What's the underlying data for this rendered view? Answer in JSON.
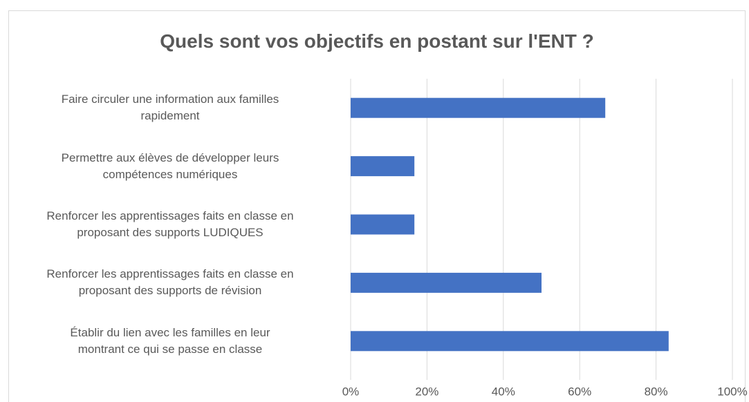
{
  "chart_data": {
    "type": "barh",
    "title": "Quels sont vos objectifs en postant sur l'ENT ?",
    "categories": [
      "Faire circuler une information aux familles\nrapidement",
      "Permettre aux élèves de développer leurs\ncompétences numériques",
      "Renforcer les apprentissages faits en classe en\nproposant des supports LUDIQUES",
      "Renforcer les apprentissages faits en classe en\nproposant des supports de révision",
      "Établir du lien avec les familles en leur\nmontrant ce qui se passe en classe"
    ],
    "values": [
      66.7,
      16.7,
      16.7,
      50,
      83.3
    ],
    "color": "#4472c4",
    "xlim": [
      0,
      100
    ],
    "xticks": [
      {
        "value": 0,
        "label": "0%"
      },
      {
        "value": 20,
        "label": "20%"
      },
      {
        "value": 40,
        "label": "40%"
      },
      {
        "value": 60,
        "label": "60%"
      },
      {
        "value": 80,
        "label": "80%"
      },
      {
        "value": 100,
        "label": "100%"
      }
    ],
    "grid": true
  }
}
